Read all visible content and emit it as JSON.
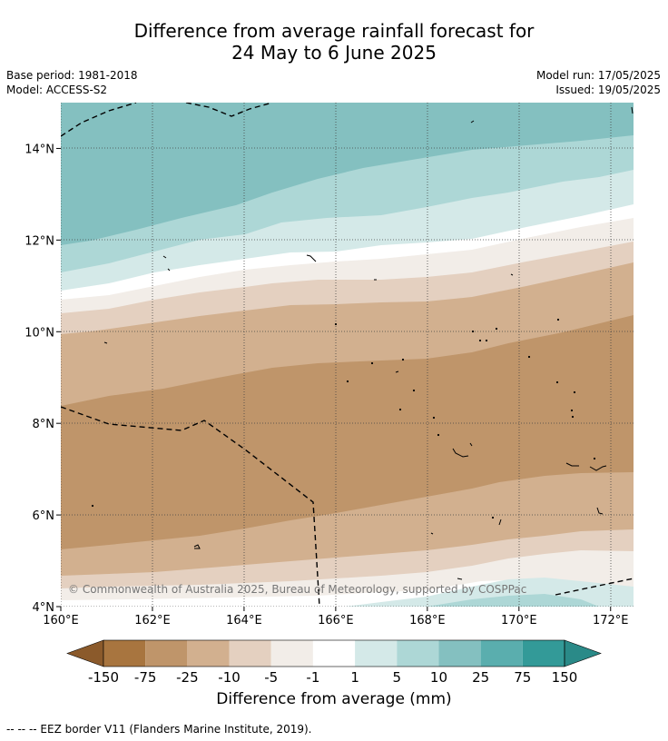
{
  "title": {
    "line1": "Difference from average rainfall forecast for",
    "line2": "24 May to 6 June 2025"
  },
  "meta": {
    "base_period": "Base period: 1981-2018",
    "model": "Model: ACCESS-S2",
    "model_run": "Model run: 17/05/2025",
    "issued": "Issued: 19/05/2025"
  },
  "map": {
    "lon_range": [
      160,
      172.5
    ],
    "lat_range": [
      4,
      15
    ],
    "lon_ticks": [
      160,
      162,
      164,
      166,
      168,
      170,
      172
    ],
    "lat_ticks": [
      4,
      6,
      8,
      10,
      12,
      14
    ],
    "lon_labels": [
      "160°E",
      "162°E",
      "164°E",
      "166°E",
      "168°E",
      "170°E",
      "172°E"
    ],
    "lat_labels": [
      "4°N",
      "6°N",
      "8°N",
      "10°N",
      "12°N",
      "14°N"
    ],
    "grid": "dotted",
    "copyright": "© Commonwealth of Australia 2025, Bureau of Meteorology, supported by COSPPac"
  },
  "colorbar": {
    "ticks": [
      "-150",
      "-75",
      "-25",
      "-10",
      "-5",
      "-1",
      "1",
      "5",
      "10",
      "25",
      "75",
      "150"
    ],
    "colors": [
      "#8b5a2b",
      "#a8753f",
      "#bf956a",
      "#d2b08f",
      "#e4d0c0",
      "#f2ede8",
      "#ffffff",
      "#d4e9e8",
      "#add7d6",
      "#84c0c0",
      "#5aaeae",
      "#339a98",
      "#2a8a88"
    ],
    "title": "Difference from average (mm)"
  },
  "footnote": "--  --  -- EEZ border V11 (Flanders Marine Institute, 2019)."
}
